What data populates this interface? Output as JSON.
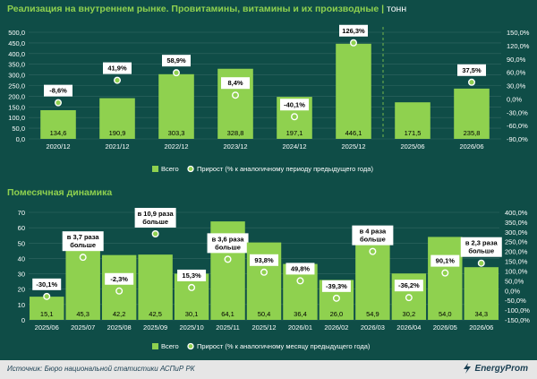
{
  "header": {
    "title": "Реализация на внутреннем рынке. Провитамины, витамины и их производные",
    "separator": "|",
    "unit": "тонн"
  },
  "section2": {
    "title": "Помесячная динамика"
  },
  "footer": {
    "source": "Источник: Бюро национальной статистики АСПиР РК",
    "logo": "EnergyProm"
  },
  "colors": {
    "background": "#0f4d47",
    "bar": "#8fd14f",
    "title": "#8fd14f",
    "text": "#ffffff",
    "label_box": "#ffffff",
    "label_text": "#000000"
  },
  "chart_data": [
    {
      "type": "bar",
      "categories": [
        "2020/12",
        "2021/12",
        "2022/12",
        "2023/12",
        "2024/12",
        "2025/12",
        "2025/06",
        "2026/06"
      ],
      "series": [
        {
          "name": "Всего",
          "values": [
            134.6,
            190.9,
            303.3,
            328.8,
            197.1,
            446.1,
            171.5,
            235.8
          ],
          "value_labels": [
            "134,6",
            "190,9",
            "303,3",
            "328,8",
            "197,1",
            "446,1",
            "171,5",
            "235,8"
          ]
        },
        {
          "name": "Прирост (% к аналогичному периоду предыдущего года)",
          "values": [
            -8.6,
            41.9,
            58.9,
            8.4,
            -40.1,
            126.3,
            null,
            37.5
          ],
          "value_labels": [
            "-8,6%",
            "41,9%",
            "58,9%",
            "8,4%",
            "-40,1%",
            "126,3%",
            null,
            "37,5%"
          ]
        }
      ],
      "y_ticks": [
        "0,0",
        "50,0",
        "100,0",
        "150,0",
        "200,0",
        "250,0",
        "300,0",
        "350,0",
        "400,0",
        "450,0",
        "500,0"
      ],
      "y2_ticks": [
        "-90,0%",
        "-60,0%",
        "-30,0%",
        "0,0%",
        "30,0%",
        "60,0%",
        "90,0%",
        "120,0%",
        "150,0%"
      ],
      "ylim": [
        0,
        500
      ],
      "y2lim": [
        -90,
        150
      ],
      "legend_position": "bottom"
    },
    {
      "type": "bar",
      "categories": [
        "2025/06",
        "2025/07",
        "2025/08",
        "2025/09",
        "2025/10",
        "2025/11",
        "2025/12",
        "2026/01",
        "2026/02",
        "2026/03",
        "2026/04",
        "2026/05",
        "2026/06"
      ],
      "series": [
        {
          "name": "Всего",
          "values": [
            15.1,
            45.3,
            42.2,
            42.5,
            30.1,
            64.1,
            50.4,
            36.4,
            26.0,
            54.9,
            30.2,
            54.0,
            34.3
          ],
          "value_labels": [
            "15,1",
            "45,3",
            "42,2",
            "42,5",
            "30,1",
            "64,1",
            "50,4",
            "36,4",
            "26,0",
            "54,9",
            "30,2",
            "54,0",
            "34,3"
          ]
        },
        {
          "name": "Прирост (% к аналогичному месяцу предыдущего года)",
          "values": [
            -30.1,
            170,
            -2.3,
            290,
            15.3,
            160,
            93.8,
            49.8,
            -39.3,
            200,
            -36.2,
            90.1,
            140
          ],
          "value_labels": [
            [
              "-30,1%"
            ],
            [
              "в 3,7 раза",
              "больше"
            ],
            [
              "-2,3%"
            ],
            [
              "в 10,9 раза",
              "больше"
            ],
            [
              "15,3%"
            ],
            [
              "в 3,6 раза",
              "больше"
            ],
            [
              "93,8%"
            ],
            [
              "49,8%"
            ],
            [
              "-39,3%"
            ],
            [
              "в 4 раза",
              "больше"
            ],
            [
              "-36,2%"
            ],
            [
              "90,1%"
            ],
            [
              "в 2,3 раза",
              "больше"
            ]
          ]
        }
      ],
      "y_ticks": [
        "0",
        "10",
        "20",
        "30",
        "40",
        "50",
        "60",
        "70"
      ],
      "y2_ticks": [
        "-150,0%",
        "-100,0%",
        "-50,0%",
        "0,0%",
        "50,0%",
        "100,0%",
        "150,0%",
        "200,0%",
        "250,0%",
        "300,0%",
        "350,0%",
        "400,0%"
      ],
      "ylim": [
        0,
        70
      ],
      "y2lim": [
        -150,
        400
      ],
      "legend_position": "bottom"
    }
  ]
}
